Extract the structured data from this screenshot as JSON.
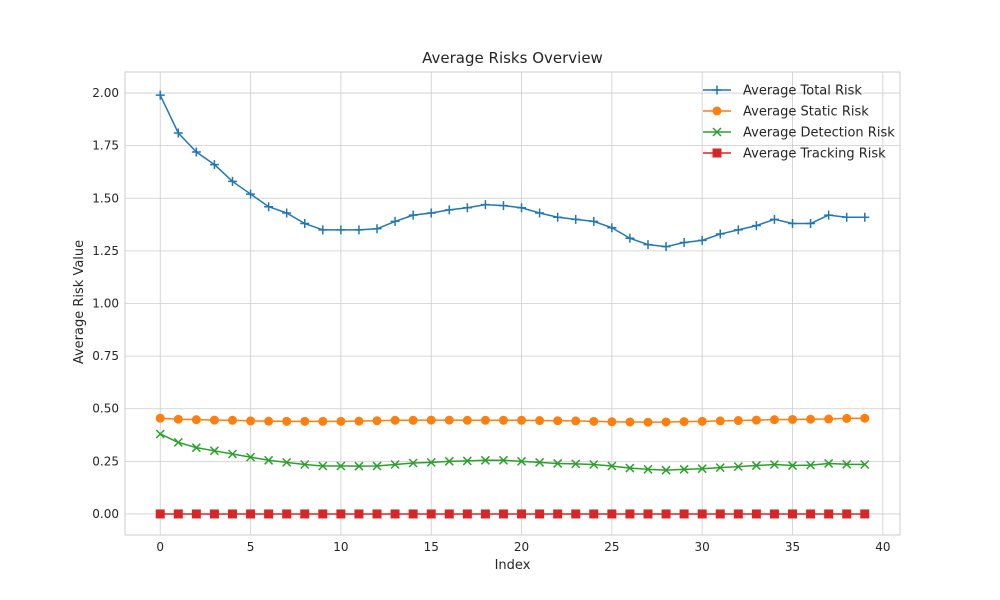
{
  "chart_data": {
    "type": "line",
    "title": "Average Risks Overview",
    "xlabel": "Index",
    "ylabel": "Average Risk Value",
    "xlim": [
      -1.95,
      40.95
    ],
    "ylim": [
      -0.1,
      2.1
    ],
    "x_ticks": [
      0,
      5,
      10,
      15,
      20,
      25,
      30,
      35,
      40
    ],
    "y_ticks": [
      0.0,
      0.25,
      0.5,
      0.75,
      1.0,
      1.25,
      1.5,
      1.75,
      2.0
    ],
    "y_tick_labels": [
      "0.00",
      "0.25",
      "0.50",
      "0.75",
      "1.00",
      "1.25",
      "1.50",
      "1.75",
      "2.00"
    ],
    "grid": true,
    "legend_position": "top-right",
    "x": [
      0,
      1,
      2,
      3,
      4,
      5,
      6,
      7,
      8,
      9,
      10,
      11,
      12,
      13,
      14,
      15,
      16,
      17,
      18,
      19,
      20,
      21,
      22,
      23,
      24,
      25,
      26,
      27,
      28,
      29,
      30,
      31,
      32,
      33,
      34,
      35,
      36,
      37,
      38,
      39
    ],
    "series": [
      {
        "name": "Average Total Risk",
        "color": "#1f77b4",
        "marker": "plus",
        "values": [
          1.99,
          1.81,
          1.72,
          1.66,
          1.58,
          1.52,
          1.46,
          1.43,
          1.38,
          1.35,
          1.35,
          1.35,
          1.355,
          1.39,
          1.42,
          1.43,
          1.445,
          1.455,
          1.47,
          1.465,
          1.455,
          1.43,
          1.41,
          1.4,
          1.39,
          1.36,
          1.31,
          1.28,
          1.27,
          1.29,
          1.3,
          1.33,
          1.35,
          1.37,
          1.4,
          1.38,
          1.38,
          1.42,
          1.41,
          1.41
        ]
      },
      {
        "name": "Average Static Risk",
        "color": "#ff7f0e",
        "marker": "circle",
        "values": [
          0.455,
          0.45,
          0.448,
          0.446,
          0.445,
          0.442,
          0.441,
          0.44,
          0.44,
          0.44,
          0.44,
          0.441,
          0.443,
          0.445,
          0.445,
          0.446,
          0.446,
          0.445,
          0.445,
          0.445,
          0.445,
          0.444,
          0.443,
          0.442,
          0.44,
          0.438,
          0.437,
          0.436,
          0.437,
          0.439,
          0.44,
          0.442,
          0.444,
          0.446,
          0.448,
          0.449,
          0.45,
          0.451,
          0.454,
          0.455
        ]
      },
      {
        "name": "Average Detection Risk",
        "color": "#2ca02c",
        "marker": "x",
        "values": [
          0.38,
          0.34,
          0.315,
          0.3,
          0.285,
          0.27,
          0.255,
          0.245,
          0.235,
          0.228,
          0.228,
          0.227,
          0.228,
          0.235,
          0.242,
          0.245,
          0.25,
          0.252,
          0.255,
          0.255,
          0.25,
          0.245,
          0.24,
          0.238,
          0.235,
          0.228,
          0.218,
          0.212,
          0.208,
          0.212,
          0.215,
          0.22,
          0.225,
          0.23,
          0.235,
          0.23,
          0.232,
          0.24,
          0.236,
          0.235
        ]
      },
      {
        "name": "Average Tracking Risk",
        "color": "#d62728",
        "marker": "square",
        "values": [
          0,
          0,
          0,
          0,
          0,
          0,
          0,
          0,
          0,
          0,
          0,
          0,
          0,
          0,
          0,
          0,
          0,
          0,
          0,
          0,
          0,
          0,
          0,
          0,
          0,
          0,
          0,
          0,
          0,
          0,
          0,
          0,
          0,
          0,
          0,
          0,
          0,
          0,
          0,
          0
        ]
      }
    ]
  }
}
